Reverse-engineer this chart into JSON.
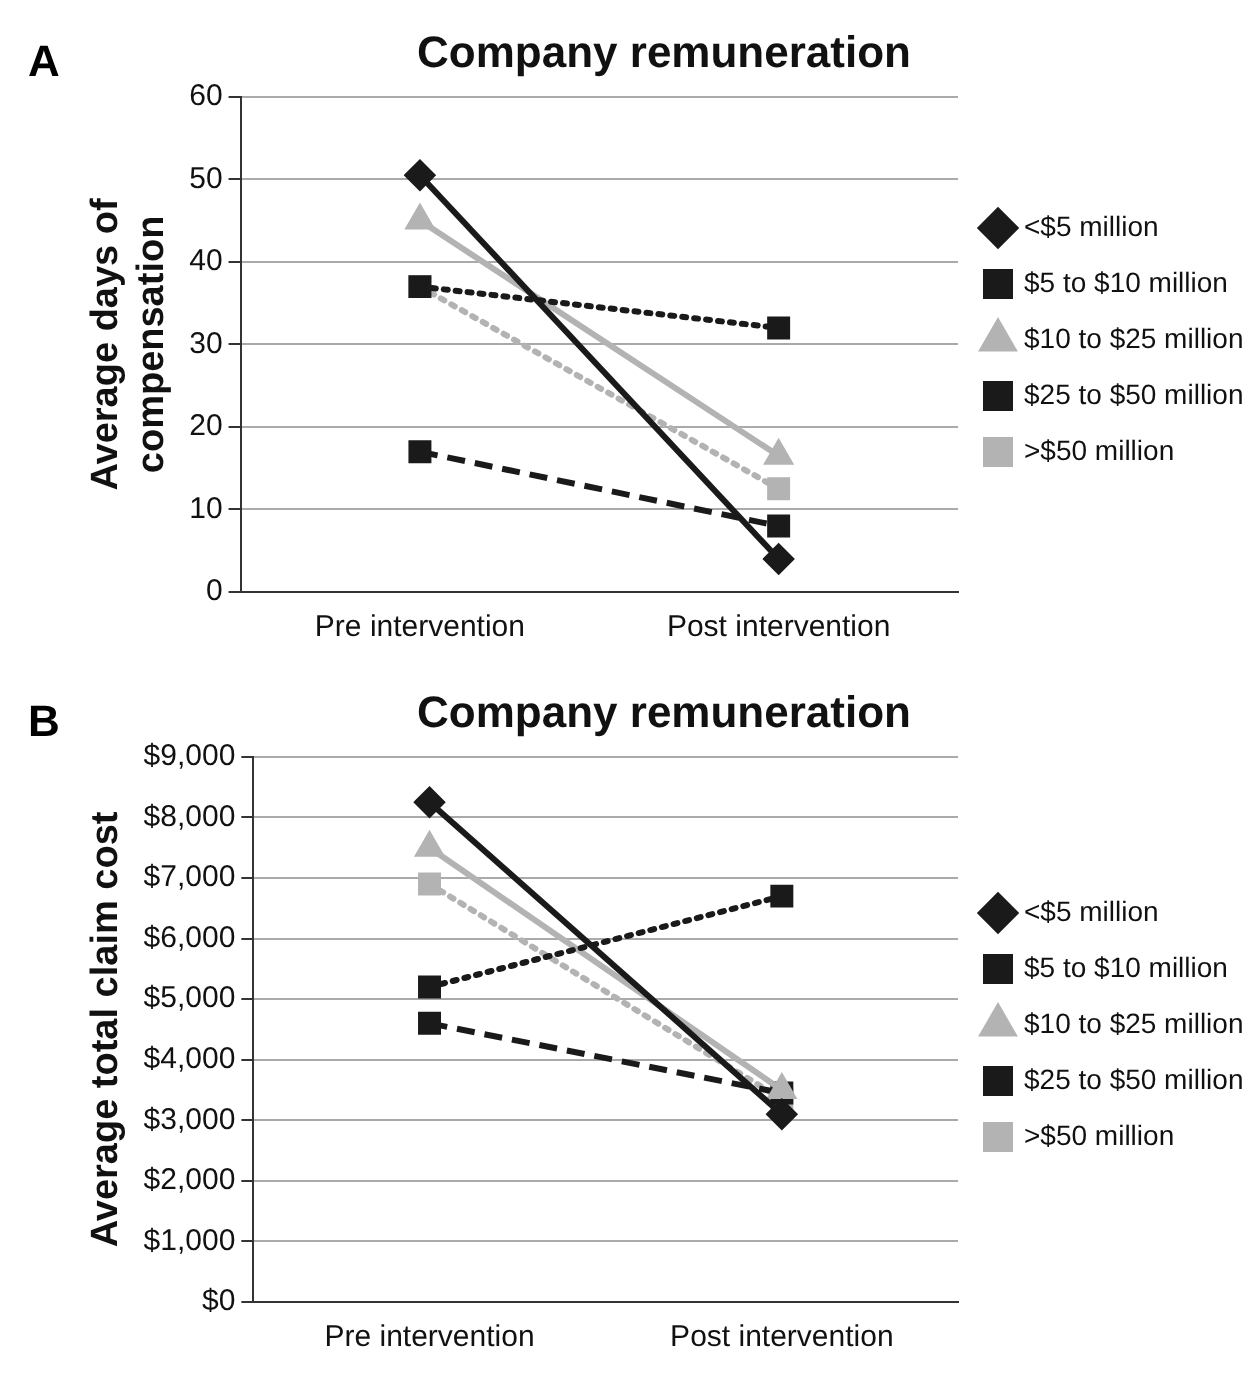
{
  "chart_data": [
    {
      "type": "line",
      "title": "Company remuneration",
      "ylabel": "Average days of compensation",
      "annotations": [
        "A"
      ],
      "categories": [
        "Pre intervention",
        "Post intervention"
      ],
      "series": [
        {
          "name": "<$5 million",
          "color": "#1a1a1a",
          "marker": "diamond",
          "line_style": "solid",
          "values": [
            50.5,
            4
          ]
        },
        {
          "name": "$5 to $10 million",
          "color": "#1a1a1a",
          "marker": "square",
          "line_style": "dotted",
          "values": [
            37,
            32
          ]
        },
        {
          "name": "$10 to $25 million",
          "color": "#b3b3b3",
          "marker": "triangle",
          "line_style": "solid",
          "values": [
            45,
            16.5
          ]
        },
        {
          "name": "$25 to $50 million",
          "color": "#1a1a1a",
          "marker": "square",
          "line_style": "dashed",
          "values": [
            17,
            8
          ]
        },
        {
          "name": ">$50 million",
          "color": "#b3b3b3",
          "marker": "square",
          "line_style": "dotted",
          "values": [
            37,
            12.5
          ]
        }
      ],
      "ylim": [
        0,
        60
      ],
      "yticks": [
        0,
        10,
        20,
        30,
        40,
        50,
        60
      ],
      "grid": "y",
      "legend": "right"
    },
    {
      "type": "line",
      "title": "Company remuneration",
      "ylabel": "Average total claim cost",
      "annotations": [
        "B"
      ],
      "categories": [
        "Pre intervention",
        "Post intervention"
      ],
      "series": [
        {
          "name": "<$5 million",
          "color": "#1a1a1a",
          "marker": "diamond",
          "line_style": "solid",
          "values": [
            8250,
            3100
          ]
        },
        {
          "name": "$5 to $10 million",
          "color": "#1a1a1a",
          "marker": "square",
          "line_style": "dotted",
          "values": [
            5200,
            6700
          ]
        },
        {
          "name": "$10 to $25 million",
          "color": "#b3b3b3",
          "marker": "triangle",
          "line_style": "solid",
          "values": [
            7500,
            3500
          ]
        },
        {
          "name": "$25 to $50 million",
          "color": "#1a1a1a",
          "marker": "square",
          "line_style": "dashed",
          "values": [
            4600,
            3450
          ]
        },
        {
          "name": ">$50 million",
          "color": "#b3b3b3",
          "marker": "square",
          "line_style": "dotted",
          "values": [
            6900,
            3350
          ]
        }
      ],
      "ylim": [
        0,
        9000
      ],
      "yticks": [
        {
          "value": 0,
          "label": "$0"
        },
        {
          "value": 1000,
          "label": "$1,000"
        },
        {
          "value": 2000,
          "label": "$2,000"
        },
        {
          "value": 3000,
          "label": "$3,000"
        },
        {
          "value": 4000,
          "label": "$4,000"
        },
        {
          "value": 5000,
          "label": "$5,000"
        },
        {
          "value": 6000,
          "label": "$6,000"
        },
        {
          "value": 7000,
          "label": "$7,000"
        },
        {
          "value": 8000,
          "label": "$8,000"
        },
        {
          "value": 9000,
          "label": "$9,000"
        }
      ],
      "grid": "y",
      "legend": "right"
    }
  ]
}
